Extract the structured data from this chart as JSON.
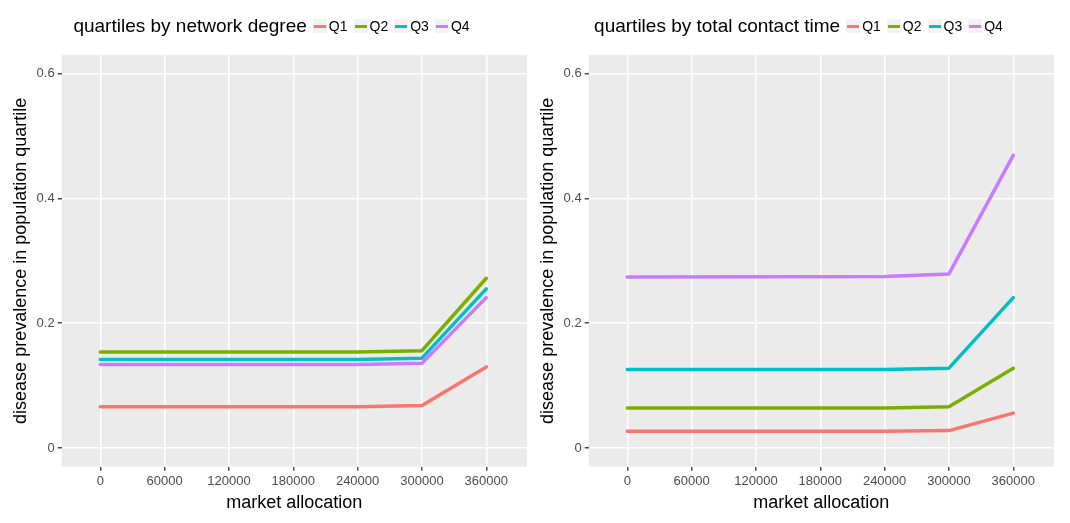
{
  "chart_data": [
    {
      "type": "line",
      "title": "quartiles by network degree",
      "xlabel": "market allocation",
      "ylabel": "disease prevalence in population quartile",
      "x": [
        0,
        240000,
        300000,
        360000
      ],
      "xlim": [
        -36000,
        398000
      ],
      "xticks": [
        0,
        60000,
        120000,
        180000,
        240000,
        300000,
        360000
      ],
      "ylim": [
        -0.03,
        0.63
      ],
      "yticks": [
        0.0,
        0.2,
        0.4,
        0.6
      ],
      "grid": true,
      "legend": "top",
      "marker": "none",
      "line_style": "solid",
      "series": [
        {
          "name": "Q1",
          "color": "#f8766d",
          "values": [
            0.066,
            0.066,
            0.068,
            0.13
          ]
        },
        {
          "name": "Q2",
          "color": "#7cae00",
          "values": [
            0.154,
            0.154,
            0.156,
            0.272
          ]
        },
        {
          "name": "Q3",
          "color": "#00bfc4",
          "values": [
            0.142,
            0.142,
            0.144,
            0.255
          ]
        },
        {
          "name": "Q4",
          "color": "#c77cff",
          "values": [
            0.134,
            0.134,
            0.136,
            0.241
          ]
        }
      ]
    },
    {
      "type": "line",
      "title": "quartiles by total contact time",
      "xlabel": "market allocation",
      "ylabel": "disease prevalence in population quartile",
      "x": [
        0,
        240000,
        300000,
        360000
      ],
      "xlim": [
        -36000,
        398000
      ],
      "xticks": [
        0,
        60000,
        120000,
        180000,
        240000,
        300000,
        360000
      ],
      "ylim": [
        -0.03,
        0.63
      ],
      "yticks": [
        0.0,
        0.2,
        0.4,
        0.6
      ],
      "grid": true,
      "legend": "top",
      "marker": "none",
      "line_style": "solid",
      "series": [
        {
          "name": "Q1",
          "color": "#f8766d",
          "values": [
            0.027,
            0.027,
            0.028,
            0.056
          ]
        },
        {
          "name": "Q2",
          "color": "#7cae00",
          "values": [
            0.064,
            0.064,
            0.066,
            0.128
          ]
        },
        {
          "name": "Q3",
          "color": "#00bfc4",
          "values": [
            0.126,
            0.126,
            0.128,
            0.241
          ]
        },
        {
          "name": "Q4",
          "color": "#c77cff",
          "values": [
            0.274,
            0.275,
            0.279,
            0.469
          ]
        }
      ]
    }
  ]
}
